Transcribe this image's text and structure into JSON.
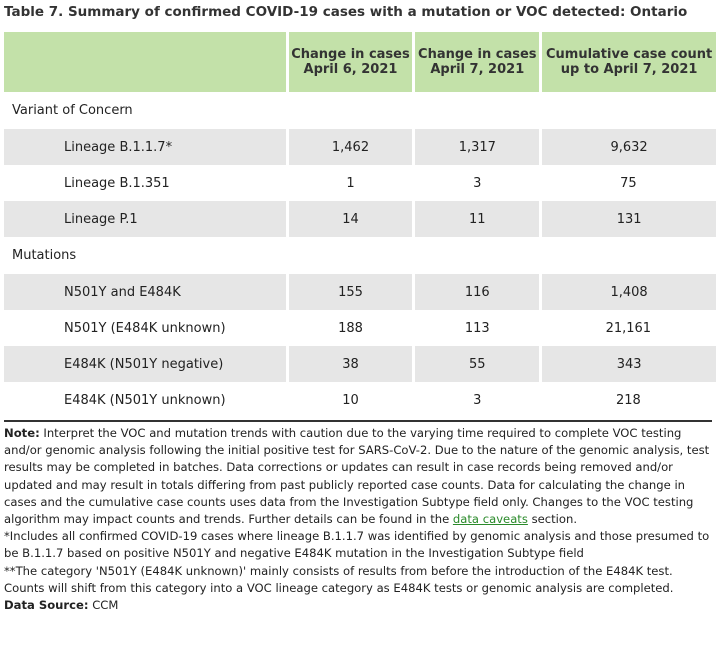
{
  "title": "Table 7. Summary of confirmed COVID-19 cases with a mutation or VOC detected: Ontario",
  "table": {
    "header": [
      [
        "Change in cases",
        "April 6, 2021"
      ],
      [
        "Change in cases",
        "April 7, 2021"
      ],
      [
        "Cumulative case count",
        "up to April 7, 2021"
      ]
    ],
    "sections": [
      {
        "label": "Variant of Concern",
        "rows": [
          [
            "Lineage B.1.1.7*",
            "1,462",
            "1,317",
            "9,632"
          ],
          [
            "Lineage B.1.351",
            "1",
            "3",
            "75"
          ],
          [
            "Lineage P.1",
            "14",
            "11",
            "131"
          ]
        ]
      },
      {
        "label": "Mutations",
        "rows": [
          [
            "N501Y and E484K",
            "155",
            "116",
            "1,408"
          ],
          [
            "N501Y (E484K unknown)",
            "188",
            "113",
            "21,161"
          ],
          [
            "E484K (N501Y negative)",
            "38",
            "55",
            "343"
          ],
          [
            "E484K (N501Y unknown)",
            "10",
            "3",
            "218"
          ]
        ]
      }
    ]
  },
  "note": {
    "label": "Note:",
    "text": "Interpret the VOC and mutation trends with caution due to the varying time required to complete VOC testing and/or genomic analysis following the initial positive test for SARS-CoV-2. Due to the nature of the genomic analysis, test results may be completed in batches. Data corrections or updates can result in case records being removed and/or updated and may result in totals differing from past publicly reported case counts. Data for calculating the change in cases and the cumulative case counts uses data from the Investigation Subtype field only. Changes to the VOC testing algorithm may impact counts and trends. Further details can be found in the",
    "link": "data caveats",
    "after": "section."
  },
  "footnotes": [
    "*Includes all confirmed COVID-19 cases where lineage B.1.1.7 was identified by genomic analysis and those presumed to be B.1.1.7 based on positive N501Y and negative E484K mutation in the Investigation Subtype field",
    "**The category 'N501Y (E484K unknown)' mainly consists of results from before the introduction of the E484K test. Counts will shift from this category into a VOC lineage category as E484K tests or genomic analysis are completed."
  ],
  "source": {
    "label": "Data Source:",
    "value": "CCM"
  }
}
